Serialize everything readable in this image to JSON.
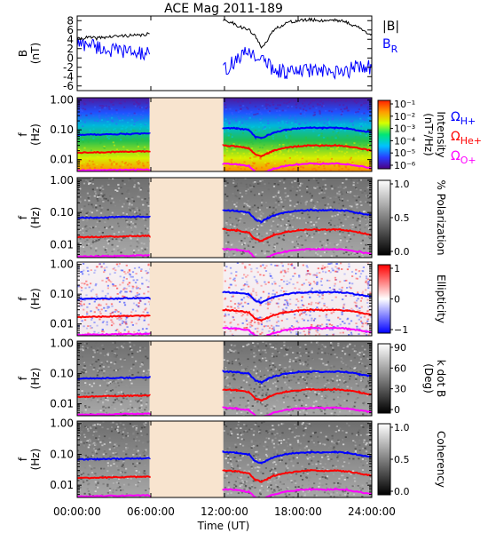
{
  "chart_data": {
    "type": "line",
    "title": "ACE Mag 2011-189",
    "xlabel": "Time (UT)",
    "x_ticks": [
      "00:00:00",
      "06:00:00",
      "12:00:00",
      "18:00:00",
      "24:00:00"
    ],
    "x_range_hours": [
      0,
      24
    ],
    "data_gap_hours": [
      5.9,
      11.9
    ],
    "gap_color": "#f8e4cf",
    "panels": [
      {
        "type": "line",
        "ylabel": "B",
        "yunit": "(nT)",
        "yticks": [
          "8",
          "6",
          "4",
          "2",
          "0",
          "-2",
          "-4",
          "-6"
        ],
        "ylim": [
          -7,
          9
        ],
        "series": [
          {
            "name": "|B|",
            "color": "#000000",
            "x": [
              0,
              0.5,
              1,
              1.5,
              2,
              3,
              4,
              5,
              5.9,
              11.9,
              12.5,
              13,
              13.5,
              14,
              14.5,
              15,
              15.5,
              16,
              17,
              18,
              19,
              20,
              21,
              22,
              22.5,
              23,
              23.5,
              24
            ],
            "y": [
              4.0,
              4.3,
              4.4,
              4.2,
              4.4,
              4.6,
              4.8,
              4.8,
              5.2,
              8.0,
              7.8,
              7.0,
              6.5,
              6.0,
              4.6,
              2.5,
              3.6,
              6.0,
              7.5,
              8.0,
              8.2,
              8.0,
              8.2,
              7.6,
              7.0,
              6.5,
              5.5,
              5.2
            ]
          },
          {
            "name": "B",
            "subscript": "R",
            "color": "#0000ff",
            "x": [
              0,
              0.5,
              1,
              1.5,
              2,
              3,
              4,
              5,
              5.9,
              11.9,
              12.5,
              13,
              13.5,
              14,
              14.5,
              15,
              15.5,
              16,
              17,
              18,
              19,
              20,
              21,
              22,
              22.5,
              23,
              23.5,
              24
            ],
            "y": [
              3.2,
              2.8,
              3.3,
              2.5,
              2.0,
              1.5,
              1.5,
              1.0,
              0.8,
              -2.8,
              -1.5,
              -0.2,
              0.5,
              1.5,
              0.5,
              -0.5,
              -1.0,
              -2.5,
              -3.0,
              -3.0,
              -2.5,
              -3.0,
              -3.3,
              -3.0,
              -2.0,
              -1.5,
              -1.8,
              -2.0
            ]
          }
        ]
      },
      {
        "type": "heatmap",
        "ylabel": "f",
        "yunit": "(Hz)",
        "yscale": "log",
        "yticks": [
          "1.00",
          "0.10",
          "0.01"
        ],
        "ylim": [
          0.004,
          1.2
        ],
        "colorbar": {
          "label": "Intensity",
          "unit": "(nT²/Hz)",
          "scale": "log",
          "palette": "rainbow",
          "ticks": [
            "10⁻¹",
            "10⁻²",
            "10⁻³",
            "10⁻⁴",
            "10⁻⁵",
            "10⁻⁶"
          ]
        },
        "legend": [
          {
            "symbol": "Ω",
            "sub": "H+",
            "color": "#0000ff"
          },
          {
            "symbol": "Ω",
            "sub": "He+",
            "color": "#ff0000"
          },
          {
            "symbol": "Ω",
            "sub": "O+",
            "color": "#ff00ff"
          }
        ]
      },
      {
        "type": "heatmap",
        "ylabel": "f",
        "yunit": "(Hz)",
        "yscale": "log",
        "yticks": [
          "1.00",
          "0.10",
          "0.01"
        ],
        "ylim": [
          0.004,
          1.2
        ],
        "colorbar": {
          "label": "% Polarization",
          "unit": "",
          "scale": "linear",
          "palette": "gray",
          "ticks": [
            "1.0",
            "0.5",
            "0.0"
          ]
        }
      },
      {
        "type": "heatmap",
        "ylabel": "f",
        "yunit": "(Hz)",
        "yscale": "log",
        "yticks": [
          "1.00",
          "0.10",
          "0.01"
        ],
        "ylim": [
          0.004,
          1.2
        ],
        "colorbar": {
          "label": "Ellipticity",
          "unit": "",
          "scale": "linear",
          "palette": "bluered",
          "ticks": [
            "1",
            "0",
            "−1"
          ]
        }
      },
      {
        "type": "heatmap",
        "ylabel": "f",
        "yunit": "(Hz)",
        "yscale": "log",
        "yticks": [
          "1.00",
          "0.10",
          "0.01"
        ],
        "ylim": [
          0.004,
          1.2
        ],
        "colorbar": {
          "label": "k dot B",
          "unit": "(Deg)",
          "scale": "linear",
          "palette": "gray",
          "ticks": [
            "90",
            "60",
            "30",
            "0"
          ]
        }
      },
      {
        "type": "heatmap",
        "ylabel": "f",
        "yunit": "(Hz)",
        "yscale": "log",
        "yticks": [
          "1.00",
          "0.10",
          "0.01"
        ],
        "ylim": [
          0.004,
          1.2
        ],
        "colorbar": {
          "label": "Coherency",
          "unit": "",
          "scale": "linear",
          "palette": "gray",
          "ticks": [
            "1.0",
            "0.5",
            "0.0"
          ]
        }
      }
    ],
    "gyrofrequency_lines": [
      {
        "ion": "H+",
        "color": "#0000ff",
        "x": [
          0,
          5.9,
          11.9,
          13,
          14,
          14.5,
          15,
          15.5,
          16,
          17,
          18,
          19,
          20,
          21,
          22,
          23,
          24
        ],
        "y": [
          0.068,
          0.075,
          0.118,
          0.112,
          0.098,
          0.06,
          0.052,
          0.066,
          0.08,
          0.1,
          0.112,
          0.118,
          0.115,
          0.118,
          0.112,
          0.095,
          0.082
        ]
      },
      {
        "ion": "He+",
        "color": "#ff0000",
        "x": [
          0,
          5.9,
          11.9,
          13,
          14,
          14.5,
          15,
          15.5,
          16,
          17,
          18,
          19,
          20,
          21,
          22,
          23,
          24
        ],
        "y": [
          0.017,
          0.019,
          0.03,
          0.028,
          0.024,
          0.015,
          0.013,
          0.016,
          0.02,
          0.025,
          0.028,
          0.03,
          0.029,
          0.03,
          0.028,
          0.024,
          0.02
        ]
      },
      {
        "ion": "O+",
        "color": "#ff00ff",
        "x": [
          0,
          5.9,
          11.9,
          13,
          14,
          14.5,
          15,
          15.5,
          16,
          17,
          18,
          19,
          20,
          21,
          22,
          23,
          24
        ],
        "y": [
          0.0043,
          0.0047,
          0.0074,
          0.007,
          0.0061,
          0.004,
          0.0036,
          0.0041,
          0.005,
          0.0062,
          0.007,
          0.0074,
          0.0072,
          0.0074,
          0.007,
          0.006,
          0.0052
        ]
      }
    ]
  }
}
